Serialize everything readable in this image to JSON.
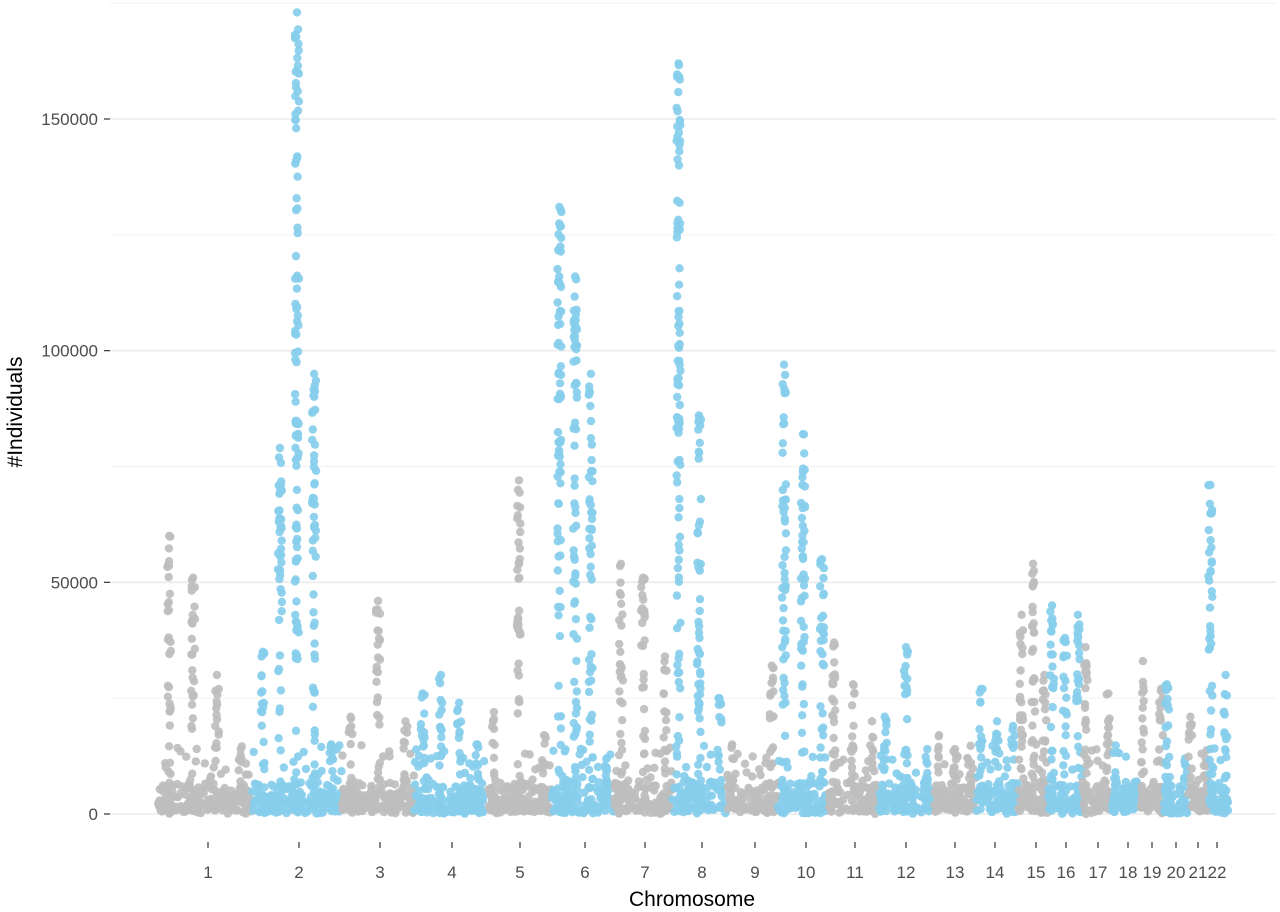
{
  "chart_data": {
    "type": "scatter",
    "xlabel": "Chromosome",
    "ylabel": "#Individuals",
    "ylim": [
      -10000,
      175000
    ],
    "y_ticks": [
      0,
      50000,
      100000,
      150000
    ],
    "y_tick_labels": [
      "0",
      "50000",
      "100000",
      "150000"
    ],
    "grid": true,
    "legend": "none",
    "colors": {
      "odd_chromosome": "#bebebe",
      "even_chromosome": "#87ceeb",
      "gridline": "#ebebeb"
    },
    "chromosomes": [
      {
        "label": "1",
        "series_color": "odd_chromosome",
        "peaks": [
          60000,
          51000,
          30000,
          14000
        ],
        "max": 60000
      },
      {
        "label": "2",
        "series_color": "even_chromosome",
        "peaks": [
          35000,
          79000,
          173000,
          95000,
          15000
        ],
        "max": 173000
      },
      {
        "label": "3",
        "series_color": "odd_chromosome",
        "peaks": [
          21000,
          46000,
          20000
        ],
        "max": 46000
      },
      {
        "label": "4",
        "series_color": "even_chromosome",
        "peaks": [
          26000,
          30000,
          24000,
          15000
        ],
        "max": 30000
      },
      {
        "label": "5",
        "series_color": "odd_chromosome",
        "peaks": [
          22000,
          72000,
          17000
        ],
        "max": 72000
      },
      {
        "label": "6",
        "series_color": "even_chromosome",
        "peaks": [
          131000,
          116000,
          95000,
          12000
        ],
        "max": 131000
      },
      {
        "label": "7",
        "series_color": "odd_chromosome",
        "peaks": [
          54000,
          51000,
          34000
        ],
        "max": 54000
      },
      {
        "label": "8",
        "series_color": "even_chromosome",
        "peaks": [
          162000,
          86000,
          25000
        ],
        "max": 162000
      },
      {
        "label": "9",
        "series_color": "odd_chromosome",
        "peaks": [
          15000,
          32000
        ],
        "max": 32000
      },
      {
        "label": "10",
        "series_color": "even_chromosome",
        "peaks": [
          97000,
          82000,
          55000
        ],
        "max": 97000
      },
      {
        "label": "11",
        "series_color": "odd_chromosome",
        "peaks": [
          37000,
          28000,
          20000
        ],
        "max": 37000
      },
      {
        "label": "12",
        "series_color": "even_chromosome",
        "peaks": [
          21000,
          36000,
          14000
        ],
        "max": 36000
      },
      {
        "label": "13",
        "series_color": "odd_chromosome",
        "peaks": [
          17000,
          14000,
          11000
        ],
        "max": 17000
      },
      {
        "label": "14",
        "series_color": "even_chromosome",
        "peaks": [
          27000,
          20000,
          19000
        ],
        "max": 27000
      },
      {
        "label": "15",
        "series_color": "odd_chromosome",
        "peaks": [
          43000,
          54000,
          30000
        ],
        "max": 54000
      },
      {
        "label": "16",
        "series_color": "even_chromosome",
        "peaks": [
          45000,
          38000,
          43000
        ],
        "max": 45000
      },
      {
        "label": "17",
        "series_color": "odd_chromosome",
        "peaks": [
          36000,
          26000
        ],
        "max": 36000
      },
      {
        "label": "18",
        "series_color": "even_chromosome",
        "peaks": [
          9000,
          7000
        ],
        "max": 9000
      },
      {
        "label": "19",
        "series_color": "odd_chromosome",
        "peaks": [
          33000,
          27000
        ],
        "max": 33000
      },
      {
        "label": "20",
        "series_color": "even_chromosome",
        "peaks": [
          28000,
          12000
        ],
        "max": 28000
      },
      {
        "label": "21",
        "series_color": "odd_chromosome",
        "peaks": [
          21000,
          12000
        ],
        "max": 21000
      },
      {
        "label": "22",
        "series_color": "even_chromosome",
        "peaks": [
          71000,
          30000
        ],
        "max": 71000
      }
    ]
  }
}
